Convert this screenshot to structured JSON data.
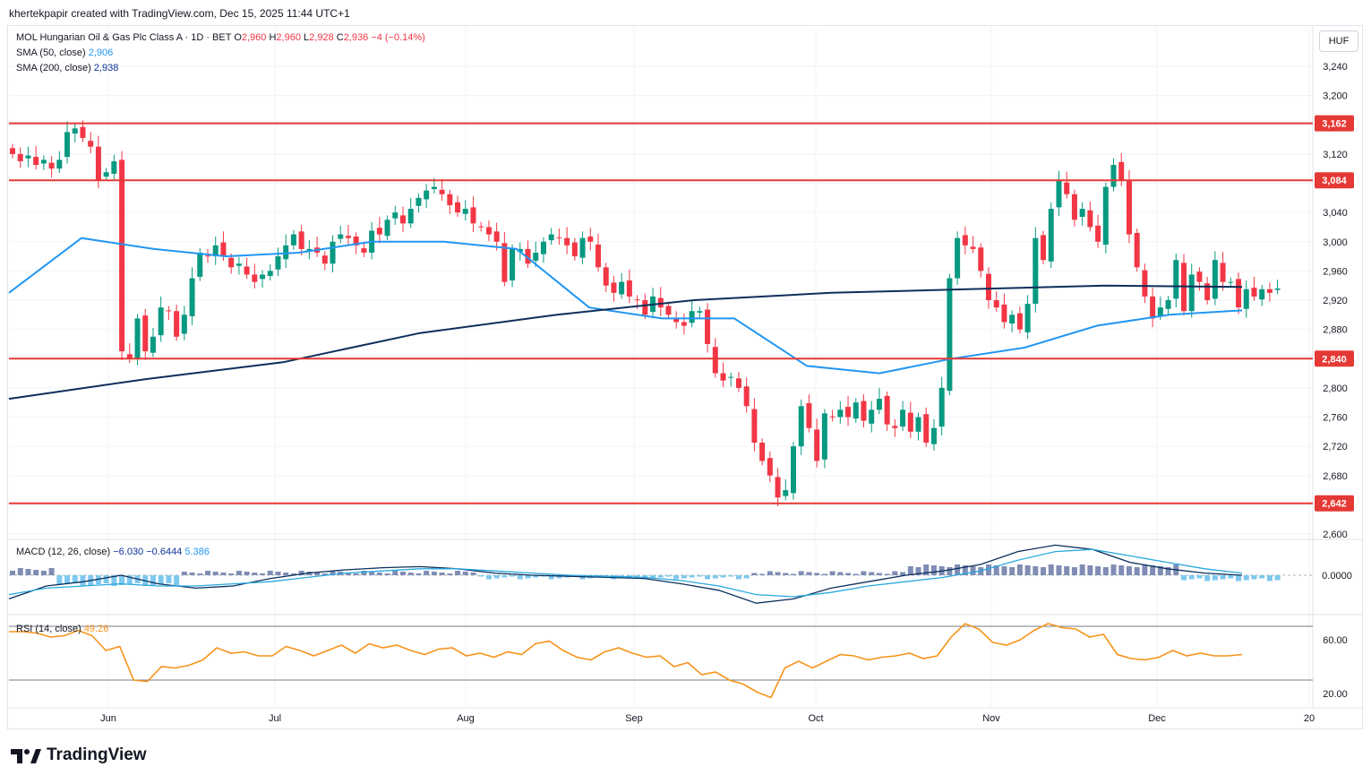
{
  "header": {
    "credit": "khertekpapir created with TradingView.com, Dec 15, 2025 11:44 UTC+1"
  },
  "legend": {
    "symbol": "MOL Hungarian Oil & Gas Plc Class A · 1D · BET",
    "o_label": "O",
    "o_value": "2,960",
    "h_label": "H",
    "h_value": "2,960",
    "l_label": "L",
    "l_value": "2,928",
    "c_label": "C",
    "c_value": "2,936",
    "change": "−4 (−0.14%)",
    "sma50_label": "SMA (50, close)",
    "sma50_value": "2,906",
    "sma200_label": "SMA (200, close)",
    "sma200_value": "2,938",
    "macd_label": "MACD (12, 26, close)",
    "macd_value": "−6.030",
    "macd_signal": "−0.6444",
    "macd_hist": "5.386",
    "rsi_label": "RSI (14, close)",
    "rsi_value": "49.26"
  },
  "currency": "HUF",
  "footer": {
    "logo_text": "TradingView"
  },
  "colors": {
    "up": "#089981",
    "down": "#f23645",
    "sma50": "#2196f3",
    "sma200": "#0c2f5b",
    "level": "#e53935",
    "macd_line": "#0c2f5b",
    "signal_line": "#29a8e0",
    "hist_pos": "#7f8db4",
    "hist_neg": "#7ec8ef",
    "rsi": "#f7931a",
    "grid": "#f0f3fa"
  },
  "chart_data": [
    {
      "type": "candlestick",
      "title": "MOL Hungarian Oil & Gas Plc Class A · 1D · BET",
      "y_ticks": [
        "2,600",
        "2,640",
        "2,680",
        "2,720",
        "2,760",
        "2,800",
        "2,840",
        "2,880",
        "2,920",
        "2,960",
        "3,000",
        "3,040",
        "3,080",
        "3,120",
        "3,160",
        "3,200",
        "3,240"
      ],
      "y_range": [
        2580,
        3265
      ],
      "x_ticks": [
        "Jun",
        "Jul",
        "Aug",
        "Sep",
        "Oct",
        "Nov",
        "Dec",
        "20"
      ],
      "levels": [
        {
          "value": 3162,
          "label": "3,162"
        },
        {
          "value": 3084,
          "label": "3,084"
        },
        {
          "value": 2840,
          "label": "2,840"
        },
        {
          "value": 2642,
          "label": "2,642"
        }
      ],
      "closes": [
        3120,
        3110,
        3118,
        3105,
        3112,
        3100,
        3112,
        3150,
        3155,
        3142,
        3130,
        3085,
        3095,
        3110,
        2850,
        2840,
        2895,
        2850,
        2870,
        2910,
        2905,
        2870,
        2900,
        2950,
        2985,
        2980,
        2995,
        2980,
        2965,
        2970,
        2955,
        2945,
        2955,
        2960,
        2980,
        2995,
        3010,
        2990,
        2990,
        2985,
        2970,
        3000,
        3010,
        3005,
        2995,
        2985,
        3015,
        3010,
        3030,
        3040,
        3025,
        3045,
        3060,
        3070,
        3075,
        3065,
        3050,
        3040,
        3045,
        3025,
        3020,
        3010,
        3000,
        2945,
        2990,
        2990,
        2970,
        2985,
        3000,
        3010,
        3005,
        2995,
        2980,
        3005,
        3000,
        2965,
        2940,
        2930,
        2945,
        2925,
        2920,
        2900,
        2925,
        2910,
        2900,
        2890,
        2885,
        2905,
        2905,
        2860,
        2820,
        2810,
        2815,
        2800,
        2775,
        2725,
        2700,
        2680,
        2650,
        2660,
        2720,
        2775,
        2745,
        2700,
        2765,
        2760,
        2770,
        2760,
        2780,
        2755,
        2770,
        2785,
        2750,
        2745,
        2770,
        2740,
        2760,
        2725,
        2745,
        2800,
        2950,
        3005,
        2995,
        2990,
        2960,
        2920,
        2910,
        2890,
        2900,
        2880,
        2915,
        3005,
        2975,
        3045,
        3085,
        3065,
        3030,
        3045,
        3020,
        3000,
        3075,
        3105,
        3085,
        3010,
        2965,
        2925,
        2895,
        2910,
        2920,
        2975,
        2905,
        2955,
        2945,
        2920,
        2975,
        2945,
        2945,
        2910,
        2935,
        2925,
        2935,
        2930,
        2936
      ],
      "sma50": [
        2930,
        3005,
        2990,
        2980,
        2985,
        3000,
        3000,
        2990,
        2910,
        2895,
        2895,
        2830,
        2820,
        2840,
        2855,
        2885,
        2900,
        2906
      ],
      "sma200": [
        2785,
        2812,
        2835,
        2875,
        2900,
        2920,
        2930,
        2935,
        2940,
        2938
      ],
      "macd": {
        "labels": [
          "0.0000"
        ]
      },
      "rsi": {
        "y_ticks": [
          "60.00",
          "20.00"
        ],
        "upper": 70,
        "lower": 30,
        "last": 49.26
      }
    }
  ]
}
